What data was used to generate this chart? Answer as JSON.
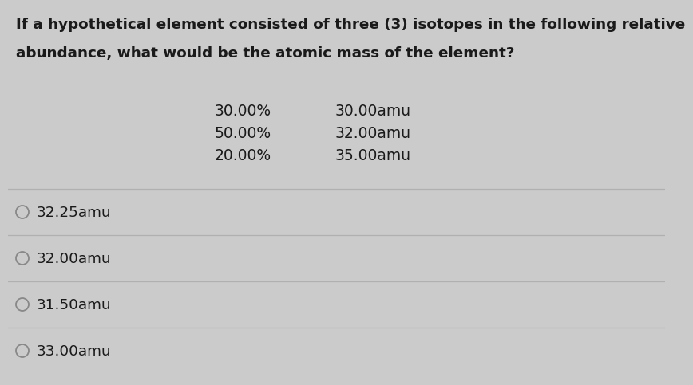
{
  "question_line1": "If a hypothetical element consisted of three (3) isotopes in the following relative",
  "question_line2": "abundance, what would be the atomic mass of the element?",
  "isotopes": [
    {
      "abundance": "30.00%",
      "mass": "30.00amu"
    },
    {
      "abundance": "50.00%",
      "mass": "32.00amu"
    },
    {
      "abundance": "20.00%",
      "mass": "35.00amu"
    }
  ],
  "choices": [
    "32.25amu",
    "32.00amu",
    "31.50amu",
    "33.00amu"
  ],
  "bg_color": "#cbcbcb",
  "text_color": "#1a1a1a",
  "divider_color": "#b0b0b0",
  "question_fontsize": 13.2,
  "isotope_fontsize": 13.5,
  "choice_fontsize": 13.2,
  "fig_width": 8.23,
  "fig_height": 4.64
}
